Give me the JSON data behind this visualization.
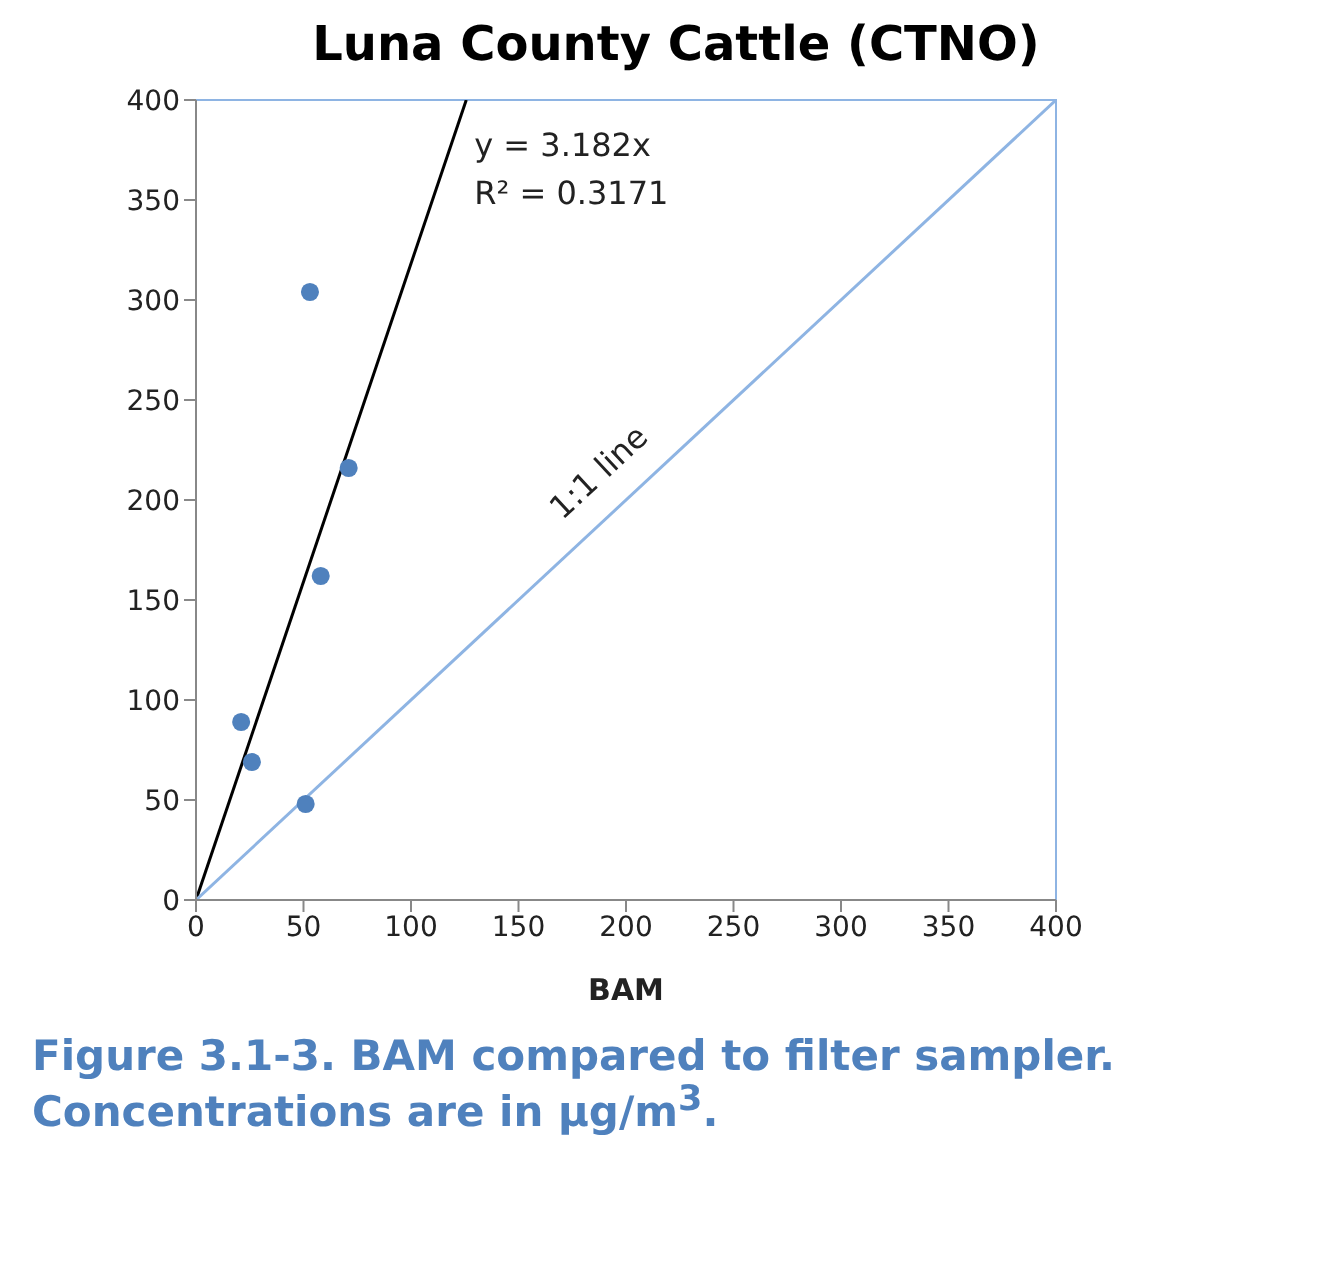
{
  "chart_data": {
    "type": "scatter",
    "title": "Luna County Cattle (CTNO)",
    "xlabel": "BAM",
    "series": [
      {
        "color": "#4f81bd",
        "x": [
          53,
          71,
          58,
          21,
          26,
          51
        ],
        "values": [
          304,
          216,
          162,
          89,
          69,
          48
        ]
      },
      {
        "type": "line",
        "color": "#000000",
        "x": [
          0,
          125.7
        ],
        "values": [
          0,
          400
        ]
      },
      {
        "type": "line",
        "name": "1:1 line",
        "color": "#8eb4e3",
        "x": [
          0,
          400
        ],
        "values": [
          0,
          400
        ]
      }
    ],
    "xlim": [
      0,
      400
    ],
    "xticks": [
      0,
      50,
      100,
      150,
      200,
      250,
      300,
      350,
      400
    ],
    "ylim": [
      0,
      400
    ],
    "yticks": [
      0,
      50,
      100,
      150,
      200,
      250,
      300,
      350,
      400
    ],
    "annotations": [
      "y = 3.182x",
      "R² = 0.3171",
      "Figure 3.1-3. BAM compared to filter sampler. Concentrations are in µg/m$^{3}$."
    ]
  }
}
